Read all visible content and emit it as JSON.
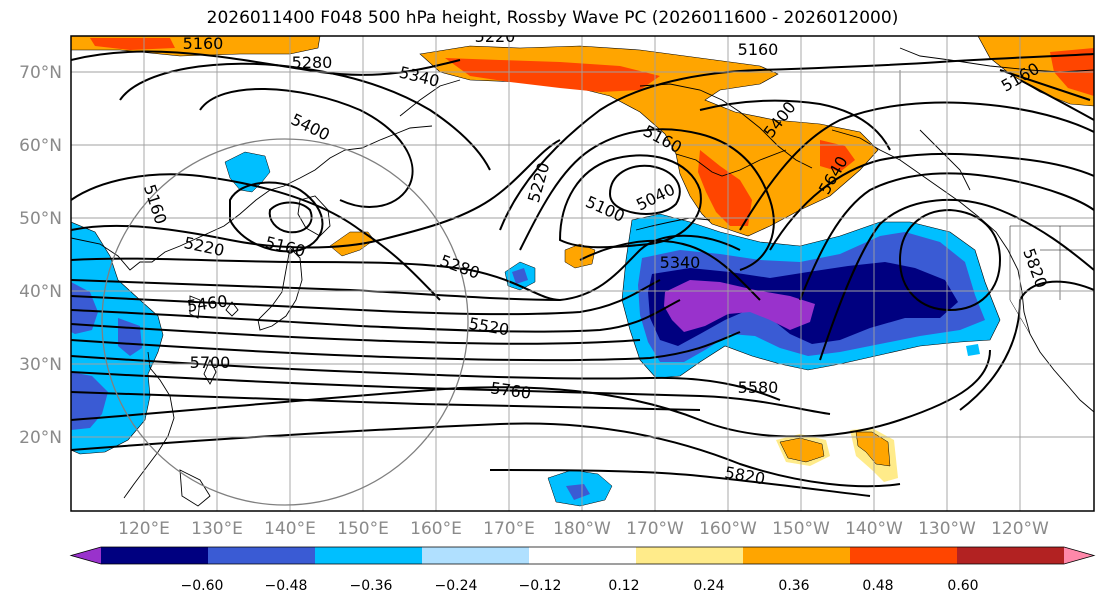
{
  "title": "2026011400 F048 500 hPa height, Rossby Wave PC (2026011600 - 2026012000)",
  "lat_labels": [
    "70°N",
    "60°N",
    "50°N",
    "40°N",
    "30°N",
    "20°N"
  ],
  "lon_labels": [
    "120°E",
    "130°E",
    "140°E",
    "150°E",
    "160°E",
    "170°E",
    "180°W",
    "170°W",
    "160°W",
    "150°W",
    "140°W",
    "130°W",
    "120°W"
  ],
  "colorbar": {
    "ticks": [
      "−0.60",
      "−0.48",
      "−0.36",
      "−0.24",
      "−0.12",
      "0.12",
      "0.24",
      "0.36",
      "0.48",
      "0.60"
    ],
    "colors": [
      "#9932cc",
      "#000080",
      "#3a5bd4",
      "#00bfff",
      "#b0e0ff",
      "#ffffff",
      "#ffeb8a",
      "#ffa500",
      "#ff4500",
      "#b22222",
      "#ff88aa"
    ]
  },
  "contour_labels": [
    "5160",
    "5220",
    "5160",
    "5280",
    "5340",
    "5400",
    "5160",
    "5220",
    "5160",
    "5040",
    "5100",
    "5400",
    "5640",
    "5160",
    "5220",
    "5160",
    "5460",
    "5280",
    "5340",
    "5520",
    "5700",
    "5760",
    "5580",
    "5820",
    "5820"
  ]
}
